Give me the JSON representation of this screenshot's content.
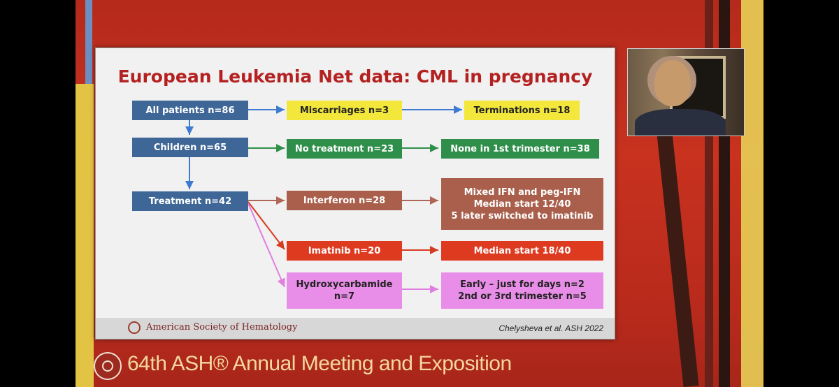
{
  "slide": {
    "title": "European Leukemia Net data: CML in pregnancy",
    "boxes": {
      "all_patients": "All patients n=86",
      "children": "Children n=65",
      "treatment": "Treatment n=42",
      "miscarriages": "Miscarriages n=3",
      "terminations": "Terminations n=18",
      "no_treatment": "No treatment n=23",
      "none_first_trimester": "None in 1st trimester n=38",
      "interferon": "Interferon n=28",
      "ifn_line1": "Mixed IFN and peg-IFN",
      "ifn_line2": "Median start 12/40",
      "ifn_line3": "5 later switched to imatinib",
      "imatinib": "Imatinib n=20",
      "imatinib_start": "Median start 18/40",
      "hydroxy_line1": "Hydroxycarbamide",
      "hydroxy_line2": "n=7",
      "hu_line1": "Early – just for days n=2",
      "hu_line2": "2nd or 3rd trimester n=5"
    },
    "footer": {
      "org": "American Society of Hematology",
      "citation": "Chelysheva et al. ASH 2022"
    }
  },
  "banner": {
    "text": "64th ASH® Annual Meeting and Exposition"
  },
  "colors": {
    "title": "#b42121",
    "blue": "#3e6696",
    "yellow": "#f3e73c",
    "green": "#2f8f4a",
    "brown": "#a95f4b",
    "red": "#de3a20",
    "pink": "#e98ee8"
  }
}
